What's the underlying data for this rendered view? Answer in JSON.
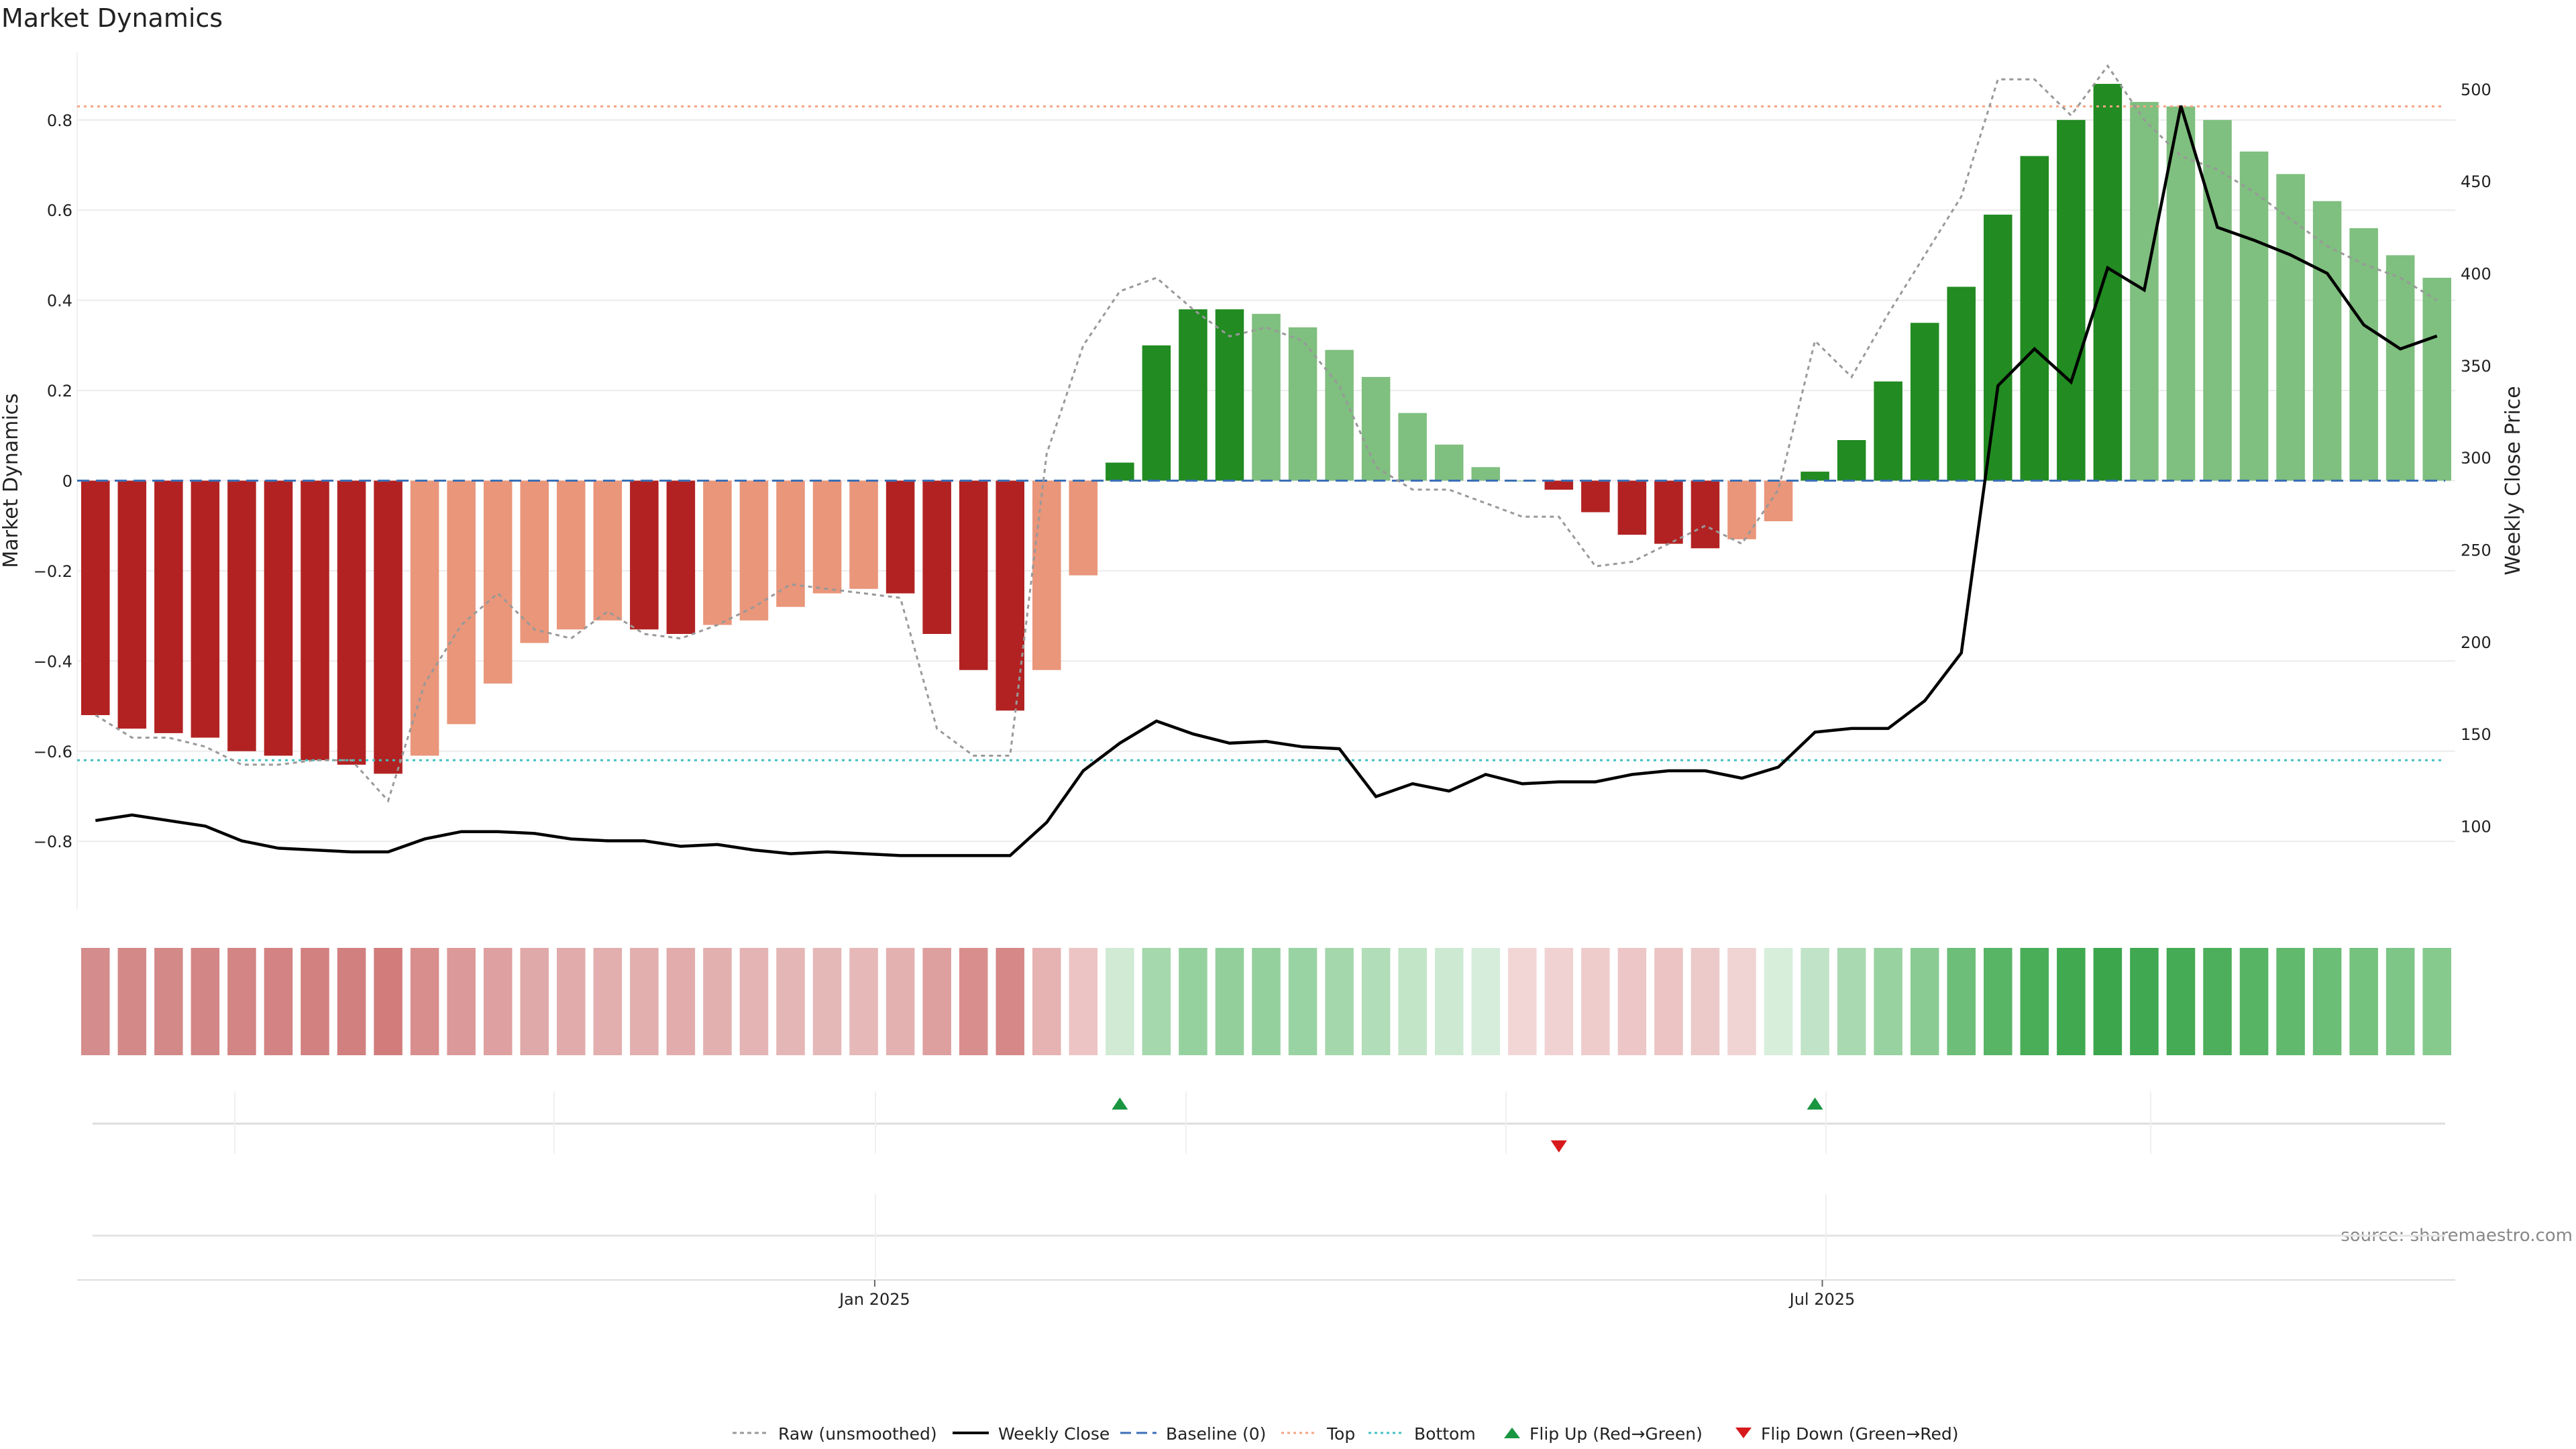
{
  "title": "Market Dynamics",
  "source": "source: sharemaestro.com",
  "colors": {
    "strong_red": "#b22222",
    "weak_red": "#e9967a",
    "strong_green": "#228b22",
    "weak_green": "#7fbf7f",
    "raw": "#999999",
    "close": "#000000",
    "baseline": "#3b6fb6",
    "top": "#f4a582",
    "bottom": "#40c0c0",
    "flip_up": "#1a9641",
    "flip_down": "#d7191c"
  },
  "chart_data": {
    "type": "bar",
    "title": "Market Dynamics",
    "xlabel": "",
    "ylabel": "Market Dynamics",
    "y2label": "Weekly Close Price",
    "ylim": [
      -0.95,
      0.95
    ],
    "y2lim": [
      55,
      520
    ],
    "yticks": [
      "0.8",
      "0.6",
      "0.4",
      "0.2",
      "0",
      "−0.2",
      "−0.4",
      "−0.6",
      "−0.8"
    ],
    "y2ticks": [
      "500",
      "450",
      "400",
      "350",
      "300",
      "250",
      "200",
      "150",
      "100"
    ],
    "xticks": [
      {
        "label": "Jan 2025",
        "index": 21.3
      },
      {
        "label": "Jul 2025",
        "index": 47.2
      }
    ],
    "top_level": 0.83,
    "bottom_level": -0.62,
    "baseline": 0,
    "series": [
      {
        "name": "Market Dynamics",
        "values": [
          -0.52,
          -0.55,
          -0.56,
          -0.57,
          -0.6,
          -0.61,
          -0.62,
          -0.63,
          -0.65,
          -0.61,
          -0.54,
          -0.45,
          -0.36,
          -0.33,
          -0.31,
          -0.33,
          -0.34,
          -0.32,
          -0.31,
          -0.28,
          -0.25,
          -0.24,
          -0.25,
          -0.34,
          -0.42,
          -0.51,
          -0.42,
          -0.21,
          0.04,
          0.3,
          0.38,
          0.38,
          0.37,
          0.34,
          0.29,
          0.23,
          0.15,
          0.08,
          0.03,
          0.0,
          -0.02,
          -0.07,
          -0.12,
          -0.14,
          -0.15,
          -0.13,
          -0.09,
          0.02,
          0.09,
          0.22,
          0.35,
          0.43,
          0.59,
          0.72,
          0.8,
          0.88,
          0.84,
          0.83,
          0.8,
          0.73,
          0.68,
          0.62,
          0.56,
          0.5,
          0.45
        ],
        "states": [
          "S-",
          "S-",
          "S-",
          "S-",
          "S-",
          "S-",
          "S-",
          "S-",
          "S-",
          "W-",
          "W-",
          "W-",
          "W-",
          "W-",
          "W-",
          "S-",
          "S-",
          "W-",
          "W-",
          "W-",
          "W-",
          "W-",
          "S-",
          "S-",
          "S-",
          "S-",
          "W-",
          "W-",
          "S+",
          "S+",
          "S+",
          "S+",
          "W+",
          "W+",
          "W+",
          "W+",
          "W+",
          "W+",
          "W+",
          "W+",
          "S-",
          "S-",
          "S-",
          "S-",
          "S-",
          "W-",
          "W-",
          "S+",
          "S+",
          "S+",
          "S+",
          "S+",
          "S+",
          "S+",
          "S+",
          "S+",
          "W+",
          "W+",
          "W+",
          "W+",
          "W+",
          "W+",
          "W+",
          "W+",
          "W+"
        ]
      },
      {
        "name": "Raw (unsmoothed)",
        "values": [
          -0.52,
          -0.57,
          -0.57,
          -0.59,
          -0.63,
          -0.63,
          -0.62,
          -0.62,
          -0.71,
          -0.45,
          -0.32,
          -0.25,
          -0.33,
          -0.35,
          -0.29,
          -0.34,
          -0.35,
          -0.32,
          -0.28,
          -0.23,
          -0.24,
          -0.25,
          -0.26,
          -0.55,
          -0.61,
          -0.61,
          0.06,
          0.3,
          0.42,
          0.45,
          0.38,
          0.32,
          0.34,
          0.31,
          0.21,
          0.03,
          -0.02,
          -0.02,
          -0.05,
          -0.08,
          -0.08,
          -0.19,
          -0.18,
          -0.14,
          -0.1,
          -0.14,
          -0.02,
          0.31,
          0.23,
          0.37,
          0.5,
          0.63,
          0.89,
          0.89,
          0.81,
          0.92,
          0.8,
          0.72,
          0.69,
          0.64,
          0.58,
          0.52,
          0.48,
          0.45,
          0.4
        ]
      },
      {
        "name": "Weekly Close",
        "axis": "right",
        "values": [
          103,
          106,
          103,
          100,
          92,
          88,
          87,
          86,
          86,
          93,
          97,
          97,
          96,
          93,
          92,
          92,
          89,
          90,
          87,
          85,
          86,
          85,
          84,
          84,
          84,
          84,
          102,
          130,
          145,
          157,
          150,
          145,
          146,
          143,
          142,
          116,
          123,
          119,
          128,
          123,
          124,
          124,
          128,
          130,
          130,
          126,
          132,
          151,
          153,
          153,
          168,
          194,
          339,
          359,
          341,
          403,
          391,
          491,
          425,
          418,
          410,
          400,
          372,
          359,
          366
        ]
      }
    ],
    "heatmap_strip": {
      "colors": [
        "#d48c8c",
        "#d48989",
        "#d48989",
        "#d38686",
        "#d38484",
        "#d38383",
        "#d28080",
        "#d27f7f",
        "#d27c7c",
        "#d98e8e",
        "#dc9999",
        "#dea0a0",
        "#e0a9a9",
        "#e1abab",
        "#e2aeae",
        "#e2aeae",
        "#e2acac",
        "#e3b0b0",
        "#e4b3b3",
        "#e5b6b6",
        "#e5b8b8",
        "#e6b8b8",
        "#e4b1b1",
        "#de9f9f",
        "#d98e8e",
        "#d68888",
        "#e6b2b2",
        "#edc4c4",
        "#d0ead4",
        "#a6d8ad",
        "#95d19e",
        "#92cf9b",
        "#94d09d",
        "#9ad3a3",
        "#a4d7ac",
        "#b2ddb9",
        "#c2e4c7",
        "#cde9d2",
        "#d6eddb",
        "#f2d6d6",
        "#f1d2d2",
        "#efcccc",
        "#edc7c7",
        "#ecc4c4",
        "#eccaca",
        "#f0d3d3",
        "#d7eedb",
        "#c1e3c7",
        "#a9d9b0",
        "#98d2a0",
        "#8acb93",
        "#6cbe78",
        "#58b566",
        "#4aae59",
        "#41aa51",
        "#3ca64d",
        "#40a850",
        "#45ab54",
        "#4daf5b",
        "#56b464",
        "#60b96c",
        "#6bbe76",
        "#74c27e",
        "#7dc687",
        "#86ca8e"
      ]
    },
    "flips": [
      {
        "type": "Flip Up (Red→Green)",
        "index": 28
      },
      {
        "type": "Flip Down (Green→Red)",
        "index": 40
      },
      {
        "type": "Flip Up (Red→Green)",
        "index": 47
      }
    ]
  },
  "legend": [
    {
      "label": "Raw (unsmoothed)",
      "style": "raw"
    },
    {
      "label": "Weekly Close",
      "style": "close"
    },
    {
      "label": "Baseline (0)",
      "style": "baseline"
    },
    {
      "label": "Top",
      "style": "top"
    },
    {
      "label": "Bottom",
      "style": "bottom"
    },
    {
      "label": "Flip Up (Red→Green)",
      "style": "flip_up"
    },
    {
      "label": "Flip Down (Green→Red)",
      "style": "flip_down"
    }
  ]
}
